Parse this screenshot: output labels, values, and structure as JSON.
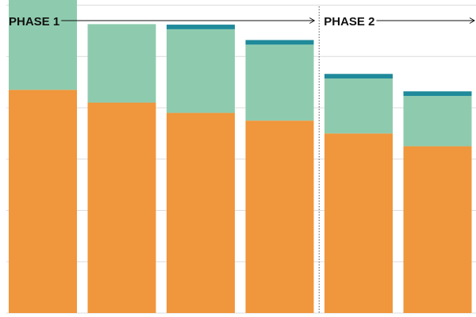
{
  "chart_data": {
    "type": "bar",
    "stacked": true,
    "grid": true,
    "legend": "none",
    "ylim": [
      0,
      6.1
    ],
    "categories": [
      "",
      "",
      "",
      "",
      "",
      ""
    ],
    "series": [
      {
        "color": "#f0963c",
        "values": [
          4.35,
          4.1,
          3.9,
          3.75,
          3.5,
          3.25
        ]
      },
      {
        "color": "#8ecbae",
        "values": [
          1.77,
          1.53,
          1.63,
          1.48,
          1.07,
          0.98
        ]
      },
      {
        "color": "#1f8a9a",
        "values": [
          0,
          0,
          0.09,
          0.09,
          0.09,
          0.09
        ]
      }
    ],
    "phases": [
      {
        "label": "PHASE 1",
        "start_index": 0,
        "end_index": 3
      },
      {
        "label": "PHASE 2",
        "start_index": 4,
        "end_index": 5
      }
    ]
  }
}
